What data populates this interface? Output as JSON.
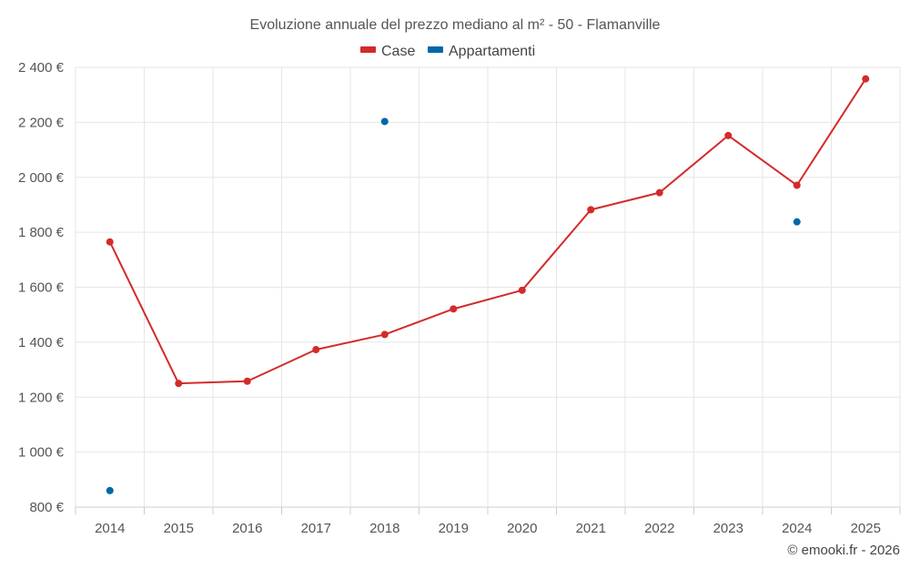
{
  "chart_data": {
    "type": "line",
    "title": "Evoluzione annuale del prezzo mediano al m² - 50 - Flamanville",
    "categories": [
      "2014",
      "2015",
      "2016",
      "2017",
      "2018",
      "2019",
      "2020",
      "2021",
      "2022",
      "2023",
      "2024",
      "2025"
    ],
    "series": [
      {
        "name": "Case",
        "color": "#d42a2a",
        "style": "line",
        "values": [
          1765,
          1250,
          1258,
          1373,
          1428,
          1521,
          1589,
          1882,
          1944,
          2152,
          1971,
          2358
        ]
      },
      {
        "name": "Appartamenti",
        "color": "#0068a8",
        "style": "points",
        "values": [
          860,
          null,
          null,
          null,
          2203,
          null,
          null,
          null,
          null,
          null,
          1838,
          null
        ]
      }
    ],
    "ylim": [
      800,
      2400
    ],
    "yticks": [
      800,
      1000,
      1200,
      1400,
      1600,
      1800,
      2000,
      2200,
      2400
    ],
    "ytick_labels": [
      "800 €",
      "1 000 €",
      "1 200 €",
      "1 400 €",
      "1 600 €",
      "1 800 €",
      "2 000 €",
      "2 200 €",
      "2 400 €"
    ],
    "xlabel": "",
    "ylabel": "",
    "grid": true,
    "legend_position": "top-center"
  },
  "credit": "© emooki.fr - 2026"
}
